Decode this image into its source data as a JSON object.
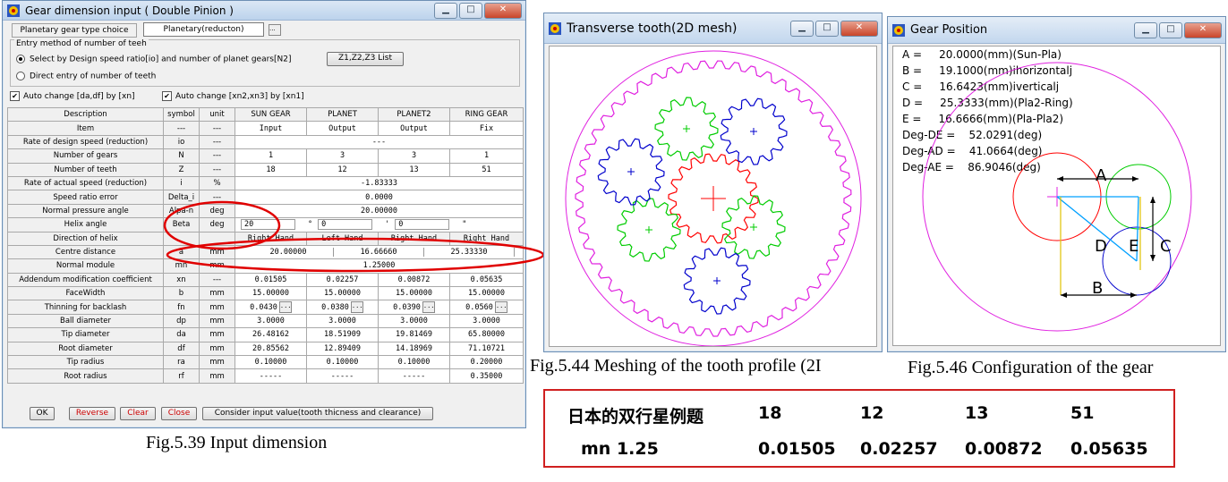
{
  "win1": {
    "title": "Gear dimension input ( Double Pinion )",
    "type_label": "Planetary gear type choice",
    "type_value": "Planetary(reducton)",
    "entry_group": "Entry method of number of teeh",
    "radio1": "Select by Design speed ratio[io] and number of planet gears[N2]",
    "radio2": "Direct entry of number of teeth",
    "list_button": "Z1,Z2,Z3  List",
    "chk1": "Auto change [da,df]  by [xn]",
    "chk2": "Auto change [xn2,xn3] by  [xn1]",
    "headers": [
      "Description",
      "symbol",
      "unit",
      "SUN GEAR",
      "PLANET",
      "PLANET2",
      "RING GEAR"
    ],
    "rows": [
      {
        "d": "Item",
        "s": "---",
        "u": "---",
        "v": [
          "Input",
          "Output",
          "Output",
          "Fix"
        ]
      },
      {
        "d": "Rate of design speed (reduction)",
        "s": "io",
        "u": "---",
        "span": "---"
      },
      {
        "d": "Number of gears",
        "s": "N",
        "u": "---",
        "v": [
          "1",
          "3",
          "3",
          "1"
        ]
      },
      {
        "d": "Number of teeth",
        "s": "Z",
        "u": "---",
        "v": [
          "18",
          "12",
          "13",
          "51"
        ]
      },
      {
        "d": "Rate of actual speed (reduction)",
        "s": "i",
        "u": "%",
        "span": "-1.83333"
      },
      {
        "d": "Speed ratio error",
        "s": "Delta_i",
        "u": "---",
        "span": "0.0000"
      },
      {
        "d": "Normal pressure angle",
        "s": "Alpa-n",
        "u": "deg",
        "span": "20.00000"
      },
      {
        "d": "Helix angle",
        "s": "Beta",
        "u": "deg",
        "helix": [
          "20",
          "0",
          "0"
        ]
      },
      {
        "d": "Direction of helix",
        "s": "",
        "u": "",
        "v": [
          "Right Hand",
          "Left Hand",
          "Right Hand",
          "Right Hand"
        ]
      },
      {
        "d": "Centre distance",
        "s": "a",
        "u": "mm",
        "centre": [
          "20.00000",
          "16.66660",
          "25.33330"
        ]
      },
      {
        "d": "Normal module",
        "s": "mn",
        "u": "mm",
        "span": "1.25000"
      },
      {
        "d": "Addendum modification coefficient",
        "s": "xn",
        "u": "---",
        "v": [
          "0.01505",
          "0.02257",
          "0.00872",
          "0.05635"
        ]
      },
      {
        "d": "FaceWidth",
        "s": "b",
        "u": "mm",
        "v": [
          "15.00000",
          "15.00000",
          "15.00000",
          "15.00000"
        ]
      },
      {
        "d": "Thinning for backlash",
        "s": "fn",
        "u": "mm",
        "v": [
          "0.0430",
          "0.0380",
          "0.0390",
          "0.0560"
        ]
      },
      {
        "d": "Ball diameter",
        "s": "dp",
        "u": "mm",
        "v": [
          "3.0000",
          "3.0000",
          "3.0000",
          "3.0000"
        ]
      },
      {
        "d": "Tip diameter",
        "s": "da",
        "u": "mm",
        "v": [
          "26.48162",
          "18.51909",
          "19.81469",
          "65.80000"
        ]
      },
      {
        "d": "Root diameter",
        "s": "df",
        "u": "mm",
        "v": [
          "20.85562",
          "12.89409",
          "14.18969",
          "71.10721"
        ]
      },
      {
        "d": "Tip radius",
        "s": "ra",
        "u": "mm",
        "v": [
          "0.10000",
          "0.10000",
          "0.10000",
          "0.20000"
        ]
      },
      {
        "d": "Root radius",
        "s": "rf",
        "u": "mm",
        "v": [
          "-----",
          "-----",
          "-----",
          "0.35000"
        ]
      }
    ],
    "buttons": {
      "ok": "OK",
      "reverse": "Reverse",
      "clear": "Clear",
      "close": "Close",
      "consider": "Consider input value(tooth thicness and  clearance)"
    }
  },
  "win2": {
    "title": "Transverse tooth(2D mesh)"
  },
  "win3": {
    "title": "Gear Position",
    "lines": [
      "A =     20.0000(mm)(Sun-Pla)",
      "B =     19.1000(mm)ihorizontalj",
      "C =     16.6423(mm)iverticalj",
      "D =     25.3333(mm)(Pla2-Ring)",
      "E =     16.6666(mm)(Pla-Pla2)",
      "Deg-DE =    52.0291(deg)",
      "Deg-AD =    41.0664(deg)",
      "Deg-AE =    86.9046(deg)"
    ],
    "labels": {
      "a": "A",
      "b": "B",
      "c": "C",
      "d": "D",
      "e": "E"
    }
  },
  "captions": {
    "c1": "Fig.5.39 Input dimension",
    "c2": "Fig.5.44 Meshing of the tooth profile (2I",
    "c3": "Fig.5.46 Configuration of the gear"
  },
  "summary": {
    "r1": [
      "日本的双行星例题",
      "18",
      "12",
      "13",
      "51"
    ],
    "r2": [
      "mn 1.25",
      "0.01505",
      "0.02257",
      "0.00872",
      "0.05635"
    ]
  },
  "colors": {
    "sun": "#ff0000",
    "planet": "#00cc00",
    "planet2": "#0000cc",
    "ring": "#e020e0",
    "annotation": "#e00000"
  }
}
